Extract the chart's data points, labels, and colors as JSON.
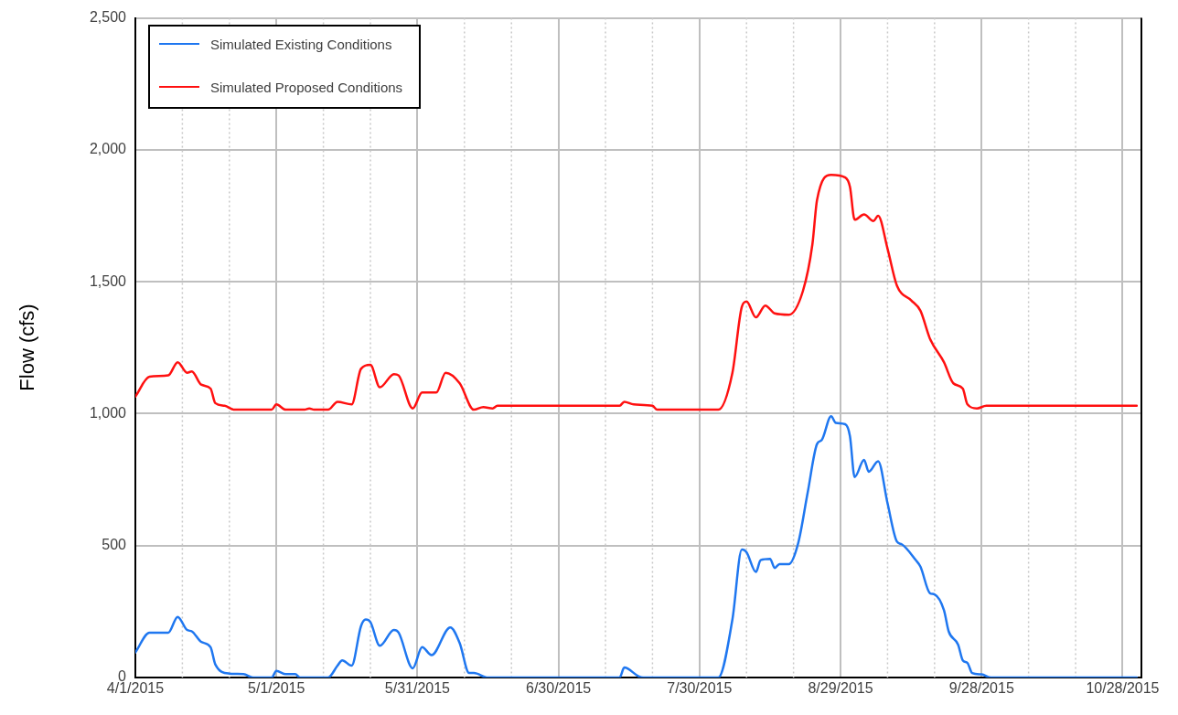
{
  "chart_data": {
    "type": "line",
    "ylabel": "Flow (cfs)",
    "xlim": [
      "2015-04-01",
      "2015-11-01"
    ],
    "xticks": [
      {
        "value": "2015-04-01",
        "label": "4/1/2015"
      },
      {
        "value": "2015-04-11",
        "label": null
      },
      {
        "value": "2015-04-21",
        "label": null
      },
      {
        "value": "2015-05-01",
        "label": "5/1/2015"
      },
      {
        "value": "2015-05-11",
        "label": null
      },
      {
        "value": "2015-05-21",
        "label": null
      },
      {
        "value": "2015-05-31",
        "label": "5/31/2015"
      },
      {
        "value": "2015-06-10",
        "label": null
      },
      {
        "value": "2015-06-20",
        "label": null
      },
      {
        "value": "2015-06-30",
        "label": "6/30/2015"
      },
      {
        "value": "2015-07-10",
        "label": null
      },
      {
        "value": "2015-07-20",
        "label": null
      },
      {
        "value": "2015-07-30",
        "label": "7/30/2015"
      },
      {
        "value": "2015-08-09",
        "label": null
      },
      {
        "value": "2015-08-19",
        "label": null
      },
      {
        "value": "2015-08-29",
        "label": "8/29/2015"
      },
      {
        "value": "2015-09-08",
        "label": null
      },
      {
        "value": "2015-09-18",
        "label": null
      },
      {
        "value": "2015-09-28",
        "label": "9/28/2015"
      },
      {
        "value": "2015-10-08",
        "label": null
      },
      {
        "value": "2015-10-18",
        "label": null
      },
      {
        "value": "2015-10-28",
        "label": "10/28/2015"
      }
    ],
    "ylim": [
      0,
      2500
    ],
    "yticks": [
      0,
      500,
      {
        "value": 1000,
        "label": "1,000"
      },
      {
        "value": 1500,
        "label": "1,500"
      },
      {
        "value": 2000,
        "label": "2,000"
      },
      {
        "value": 2500,
        "label": "2,500"
      }
    ],
    "grid": true,
    "legend": "top left",
    "marker": "none",
    "line_style": "solid",
    "series": [
      {
        "name": "Simulated Existing Conditions",
        "color": "#1f77f0",
        "x": [
          "2015-04-01",
          "2015-04-04",
          "2015-04-08",
          "2015-04-10",
          "2015-04-12",
          "2015-04-13",
          "2015-04-15",
          "2015-04-17",
          "2015-04-18",
          "2015-04-21",
          "2015-04-24",
          "2015-04-26",
          "2015-04-30",
          "2015-05-01",
          "2015-05-03",
          "2015-05-05",
          "2015-05-06",
          "2015-05-12",
          "2015-05-14",
          "2015-05-15",
          "2015-05-17",
          "2015-05-19",
          "2015-05-20",
          "2015-05-21",
          "2015-05-23",
          "2015-05-26",
          "2015-05-27",
          "2015-05-30",
          "2015-06-01",
          "2015-06-03",
          "2015-06-07",
          "2015-06-09",
          "2015-06-11",
          "2015-06-12",
          "2015-06-15",
          "2015-07-13",
          "2015-07-14",
          "2015-07-17",
          "2015-07-18",
          "2015-08-03",
          "2015-08-06",
          "2015-08-08",
          "2015-08-09",
          "2015-08-11",
          "2015-08-12",
          "2015-08-14",
          "2015-08-15",
          "2015-08-16",
          "2015-08-18",
          "2015-08-20",
          "2015-08-22",
          "2015-08-24",
          "2015-08-25",
          "2015-08-27",
          "2015-08-28",
          "2015-08-30",
          "2015-08-31",
          "2015-09-01",
          "2015-09-03",
          "2015-09-04",
          "2015-09-06",
          "2015-09-08",
          "2015-09-10",
          "2015-09-11",
          "2015-09-14",
          "2015-09-15",
          "2015-09-17",
          "2015-09-18",
          "2015-09-20",
          "2015-09-21",
          "2015-09-23",
          "2015-09-24",
          "2015-09-25",
          "2015-09-26",
          "2015-09-28",
          "2015-09-30",
          "2015-10-31"
        ],
        "values": [
          95,
          170,
          170,
          230,
          180,
          175,
          135,
          115,
          50,
          15,
          13,
          0,
          0,
          25,
          13,
          13,
          0,
          0,
          45,
          65,
          45,
          195,
          220,
          210,
          120,
          180,
          170,
          35,
          115,
          85,
          190,
          130,
          17,
          17,
          0,
          0,
          38,
          5,
          0,
          0,
          220,
          485,
          475,
          400,
          445,
          450,
          415,
          430,
          430,
          510,
          700,
          885,
          900,
          990,
          965,
          960,
          915,
          760,
          825,
          780,
          820,
          660,
          515,
          505,
          445,
          420,
          320,
          315,
          255,
          175,
          125,
          65,
          55,
          17,
          12,
          0,
          0
        ]
      },
      {
        "name": "Simulated Proposed Conditions",
        "color": "#ff1010",
        "x": [
          "2015-04-01",
          "2015-04-04",
          "2015-04-08",
          "2015-04-10",
          "2015-04-12",
          "2015-04-13",
          "2015-04-15",
          "2015-04-17",
          "2015-04-18",
          "2015-04-20",
          "2015-04-22",
          "2015-04-30",
          "2015-05-01",
          "2015-05-03",
          "2015-05-07",
          "2015-05-08",
          "2015-05-09",
          "2015-05-12",
          "2015-05-14",
          "2015-05-17",
          "2015-05-19",
          "2015-05-21",
          "2015-05-23",
          "2015-05-26",
          "2015-05-27",
          "2015-05-30",
          "2015-06-01",
          "2015-06-04",
          "2015-06-06",
          "2015-06-09",
          "2015-06-12",
          "2015-06-14",
          "2015-06-16",
          "2015-06-17",
          "2015-06-30",
          "2015-07-13",
          "2015-07-14",
          "2015-07-16",
          "2015-07-20",
          "2015-07-21",
          "2015-08-03",
          "2015-08-06",
          "2015-08-08",
          "2015-08-09",
          "2015-08-11",
          "2015-08-13",
          "2015-08-15",
          "2015-08-18",
          "2015-08-21",
          "2015-08-23",
          "2015-08-24",
          "2015-08-27",
          "2015-08-30",
          "2015-08-31",
          "2015-09-01",
          "2015-09-03",
          "2015-09-05",
          "2015-09-06",
          "2015-09-08",
          "2015-09-10",
          "2015-09-13",
          "2015-09-15",
          "2015-09-17",
          "2015-09-20",
          "2015-09-22",
          "2015-09-24",
          "2015-09-25",
          "2015-09-27",
          "2015-09-29",
          "2015-10-31"
        ],
        "values": [
          1065,
          1140,
          1145,
          1195,
          1155,
          1160,
          1110,
          1095,
          1040,
          1030,
          1015,
          1015,
          1035,
          1015,
          1015,
          1020,
          1015,
          1015,
          1045,
          1035,
          1170,
          1185,
          1100,
          1150,
          1145,
          1020,
          1080,
          1080,
          1155,
          1115,
          1015,
          1025,
          1020,
          1030,
          1030,
          1030,
          1045,
          1035,
          1030,
          1015,
          1015,
          1155,
          1405,
          1425,
          1365,
          1410,
          1380,
          1375,
          1465,
          1640,
          1810,
          1905,
          1895,
          1860,
          1735,
          1755,
          1730,
          1750,
          1625,
          1485,
          1430,
          1390,
          1285,
          1195,
          1115,
          1095,
          1035,
          1020,
          1030,
          1030
        ]
      }
    ]
  }
}
